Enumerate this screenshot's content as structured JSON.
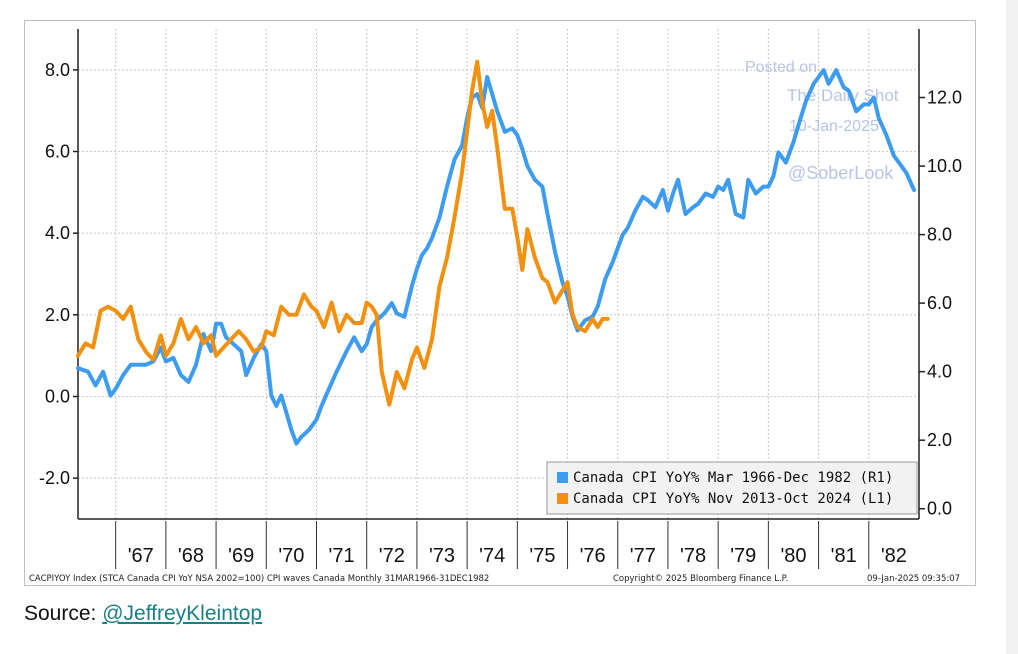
{
  "colors": {
    "series_r1": "#3d9cf0",
    "series_l1": "#f2900f",
    "grid": "#c8c8c8",
    "axis": "#222222",
    "watermark": "#b8c4e8",
    "link": "#1a7f86"
  },
  "watermark": {
    "line1": "Posted on",
    "line2": "The Daily Shot",
    "line3": "10-Jan-2025",
    "line4": "@SoberLook"
  },
  "footer": {
    "left": "CACPIYOY Index (STCA Canada CPI YoY NSA 2002=100) CPI waves Canada  Monthly 31MAR1966-31DEC1982",
    "center": "Copyright© 2025 Bloomberg Finance L.P.",
    "right": "09-Jan-2025 09:35:07"
  },
  "source": {
    "label": "Source: ",
    "link_text": "@JeffreyKleintop"
  },
  "chart_data": {
    "type": "line",
    "x_axis": {
      "range": [
        1966.25,
        1983.0
      ],
      "tick_labels": [
        "'67",
        "'68",
        "'69",
        "'70",
        "'71",
        "'72",
        "'73",
        "'74",
        "'75",
        "'76",
        "'77",
        "'78",
        "'79",
        "'80",
        "'81",
        "'82"
      ],
      "tick_positions": [
        1967,
        1968,
        1969,
        1970,
        1971,
        1972,
        1973,
        1974,
        1975,
        1976,
        1977,
        1978,
        1979,
        1980,
        1981,
        1982
      ]
    },
    "y_axis_left": {
      "range": [
        -3.0,
        9.0
      ],
      "ticks": [
        8.0,
        6.0,
        4.0,
        2.0,
        0.0,
        -2.0
      ],
      "tick_labels": [
        "8.0",
        "6.0",
        "4.0",
        "2.0",
        "0.0",
        "-2.0"
      ]
    },
    "y_axis_right": {
      "range": [
        -0.3,
        14.0
      ],
      "ticks": [
        12.0,
        10.0,
        8.0,
        6.0,
        4.0,
        2.0,
        0.0
      ],
      "tick_labels": [
        "12.0",
        "10.0",
        "8.0",
        "6.0",
        "4.0",
        "2.0",
        "0.0"
      ]
    },
    "legend_position": "bottom-right",
    "grid": true,
    "series": [
      {
        "name": "Canada CPI YoY% Mar 1966-Dec 1982 (R1)",
        "axis": "right",
        "color": "#3d9cf0",
        "x": [
          1966.25,
          1966.45,
          1966.6,
          1966.75,
          1966.9,
          1967.0,
          1967.15,
          1967.3,
          1967.45,
          1967.6,
          1967.75,
          1967.9,
          1968.0,
          1968.15,
          1968.3,
          1968.45,
          1968.6,
          1968.75,
          1968.9,
          1969.0,
          1969.1,
          1969.2,
          1969.35,
          1969.5,
          1969.6,
          1969.75,
          1969.9,
          1970.0,
          1970.1,
          1970.2,
          1970.3,
          1970.4,
          1970.5,
          1970.6,
          1970.7,
          1970.85,
          1971.0,
          1971.1,
          1971.25,
          1971.4,
          1971.5,
          1971.6,
          1971.75,
          1971.9,
          1972.0,
          1972.1,
          1972.2,
          1972.35,
          1972.5,
          1972.6,
          1972.75,
          1972.9,
          1973.0,
          1973.1,
          1973.2,
          1973.3,
          1973.45,
          1973.6,
          1973.75,
          1973.9,
          1974.0,
          1974.1,
          1974.2,
          1974.3,
          1974.4,
          1974.5,
          1974.6,
          1974.75,
          1974.9,
          1975.0,
          1975.1,
          1975.2,
          1975.35,
          1975.5,
          1975.6,
          1975.75,
          1975.9,
          1976.0,
          1976.1,
          1976.2,
          1976.35,
          1976.5,
          1976.6,
          1976.75,
          1976.9,
          1977.0,
          1977.1,
          1977.2,
          1977.35,
          1977.5,
          1977.6,
          1977.75,
          1977.9,
          1978.0,
          1978.1,
          1978.2,
          1978.35,
          1978.5,
          1978.6,
          1978.75,
          1978.9,
          1979.0,
          1979.1,
          1979.2,
          1979.35,
          1979.5,
          1979.6,
          1979.75,
          1979.9,
          1980.0,
          1980.1,
          1980.2,
          1980.35,
          1980.5,
          1980.6,
          1980.75,
          1980.9,
          1981.0,
          1981.1,
          1981.2,
          1981.35,
          1981.5,
          1981.6,
          1981.75,
          1981.9,
          1982.0,
          1982.1,
          1982.2,
          1982.35,
          1982.5,
          1982.6,
          1982.75,
          1982.9
        ],
        "values": [
          4.1,
          4.0,
          3.6,
          4.0,
          3.3,
          3.5,
          3.9,
          4.2,
          4.2,
          4.2,
          4.3,
          4.7,
          4.3,
          4.4,
          3.9,
          3.7,
          4.2,
          5.1,
          4.6,
          5.4,
          5.4,
          5.0,
          4.8,
          4.6,
          3.9,
          4.4,
          4.8,
          4.6,
          3.3,
          3.0,
          3.3,
          2.8,
          2.3,
          1.9,
          2.1,
          2.3,
          2.6,
          3.0,
          3.5,
          4.0,
          4.3,
          4.6,
          5.0,
          4.6,
          4.8,
          5.3,
          5.5,
          5.7,
          6.0,
          5.7,
          5.6,
          6.5,
          7.0,
          7.4,
          7.6,
          7.9,
          8.5,
          9.4,
          10.2,
          10.6,
          11.4,
          12.0,
          12.1,
          11.7,
          12.6,
          12.1,
          11.6,
          11.0,
          11.1,
          10.9,
          10.5,
          10.0,
          9.6,
          9.4,
          8.6,
          7.5,
          6.6,
          6.2,
          5.6,
          5.2,
          5.5,
          5.6,
          5.9,
          6.7,
          7.2,
          7.6,
          8.0,
          8.2,
          8.7,
          9.1,
          9.0,
          8.8,
          9.3,
          8.7,
          9.2,
          9.6,
          8.6,
          8.8,
          8.9,
          9.2,
          9.1,
          9.4,
          9.3,
          9.6,
          8.6,
          8.5,
          9.6,
          9.2,
          9.4,
          9.4,
          9.7,
          10.4,
          10.1,
          10.7,
          11.2,
          11.9,
          12.4,
          12.6,
          12.8,
          12.4,
          12.8,
          12.3,
          12.2,
          11.6,
          11.8,
          11.8,
          12.0,
          11.4,
          10.9,
          10.3,
          10.1,
          9.8,
          9.3
        ]
      },
      {
        "name": "Canada CPI YoY% Nov 2013-Oct 2024 (L1)",
        "axis": "left",
        "color": "#f2900f",
        "x": [
          1966.25,
          1966.4,
          1966.55,
          1966.7,
          1966.85,
          1967.0,
          1967.15,
          1967.3,
          1967.45,
          1967.6,
          1967.75,
          1967.9,
          1968.0,
          1968.15,
          1968.3,
          1968.45,
          1968.6,
          1968.75,
          1968.9,
          1969.0,
          1969.15,
          1969.3,
          1969.45,
          1969.6,
          1969.75,
          1969.9,
          1970.0,
          1970.15,
          1970.3,
          1970.45,
          1970.6,
          1970.75,
          1970.9,
          1971.0,
          1971.15,
          1971.3,
          1971.45,
          1971.6,
          1971.75,
          1971.9,
          1972.0,
          1972.1,
          1972.2,
          1972.3,
          1972.45,
          1972.6,
          1972.75,
          1972.9,
          1973.0,
          1973.15,
          1973.3,
          1973.45,
          1973.6,
          1973.75,
          1973.9,
          1974.0,
          1974.1,
          1974.2,
          1974.3,
          1974.4,
          1974.5,
          1974.6,
          1974.75,
          1974.9,
          1975.0,
          1975.1,
          1975.2,
          1975.35,
          1975.5,
          1975.6,
          1975.75,
          1975.9,
          1976.0,
          1976.1,
          1976.2,
          1976.35,
          1976.5,
          1976.6,
          1976.7,
          1976.8
        ],
        "values": [
          1.0,
          1.3,
          1.2,
          2.1,
          2.2,
          2.1,
          1.9,
          2.2,
          1.4,
          1.1,
          0.9,
          1.5,
          1.0,
          1.3,
          1.9,
          1.4,
          1.7,
          1.3,
          1.5,
          1.0,
          1.2,
          1.4,
          1.6,
          1.4,
          1.1,
          1.2,
          1.6,
          1.5,
          2.2,
          2.0,
          2.0,
          2.5,
          2.2,
          2.1,
          1.7,
          2.3,
          1.6,
          2.0,
          1.8,
          1.8,
          2.3,
          2.2,
          2.0,
          0.6,
          -0.2,
          0.6,
          0.2,
          0.9,
          1.2,
          0.7,
          1.4,
          2.7,
          3.4,
          4.4,
          5.5,
          6.5,
          7.5,
          8.2,
          7.2,
          6.6,
          7.0,
          6.1,
          4.6,
          4.6,
          3.9,
          3.1,
          4.1,
          3.4,
          2.9,
          2.8,
          2.3,
          2.6,
          2.8,
          2.0,
          1.7,
          1.6,
          1.9,
          1.7,
          1.9,
          1.9
        ]
      }
    ]
  }
}
